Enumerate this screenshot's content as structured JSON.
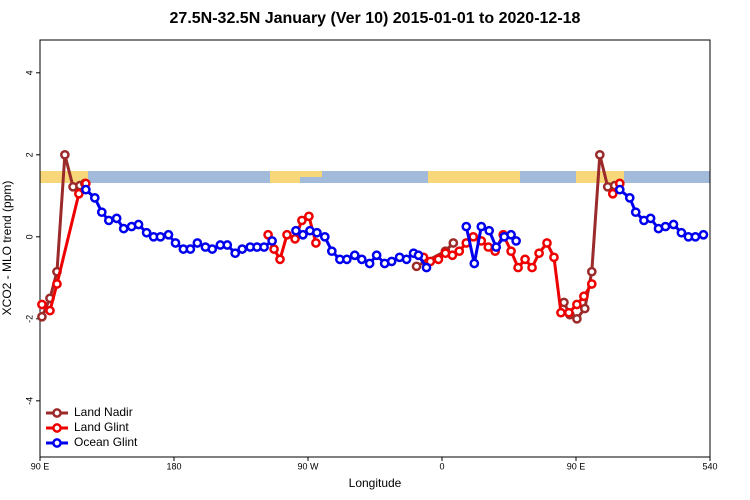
{
  "chart_data": {
    "type": "line",
    "title": "27.5N-32.5N January (Ver 10)   2015-01-01 to 2020-12-18",
    "x_label": "Longitude",
    "y_label": "XCO2 - MLO trend (ppm)",
    "xlim": [
      90,
      540
    ],
    "ylim": [
      -5.37,
      4.8
    ],
    "xticks": [
      {
        "value": 90,
        "label": "90 E"
      },
      180,
      {
        "value": 270,
        "label": "90 W"
      },
      {
        "value": 360,
        "label": "0"
      },
      {
        "value": 450,
        "label": "90 E"
      },
      540
    ],
    "yticks": [
      -4,
      -2,
      0,
      2,
      4
    ],
    "legend": "bottom-left",
    "series": [
      {
        "name": "Land Nadir",
        "color": "#9b2a2a",
        "x": [
          91.3,
          96.7,
          101.4,
          106.7,
          112.2,
          116.8,
          120.1,
          null,
          342.9,
          362.3,
          367.6,
          null,
          441.9,
          445.9,
          450.6,
          455.9,
          460.6,
          466.0,
          471.3,
          476.0,
          479.4
        ],
        "values": [
          -1.95,
          -1.5,
          -0.85,
          2.0,
          1.22,
          1.25,
          1.3,
          null,
          -0.72,
          -0.35,
          -0.15,
          null,
          -1.6,
          -1.9,
          -2.0,
          -1.75,
          -0.85,
          2.0,
          1.22,
          1.25,
          1.3
        ]
      },
      {
        "name": "Land Glint",
        "color": "#ee0000",
        "x": [
          91.3,
          96.7,
          101.4,
          116.1,
          120.8,
          null,
          243.2,
          247.2,
          251.2,
          255.9,
          261.3,
          265.9,
          270.6,
          275.3,
          null,
          347.6,
          352.2,
          357.6,
          362.3,
          367.0,
          371.6,
          376.3,
          381.0,
          386.4,
          391.1,
          395.7,
          401.1,
          406.4,
          411.1,
          415.8,
          420.5,
          425.2,
          430.5,
          435.2,
          439.9,
          445.2,
          450.6,
          455.3,
          460.6,
          null,
          474.7,
          479.4
        ],
        "values": [
          -1.65,
          -1.8,
          -1.15,
          1.05,
          1.3,
          null,
          0.05,
          -0.3,
          -0.55,
          0.05,
          -0.05,
          0.4,
          0.5,
          -0.15,
          null,
          -0.5,
          -0.6,
          -0.55,
          -0.4,
          -0.45,
          -0.35,
          -0.15,
          0.0,
          -0.1,
          -0.25,
          -0.35,
          0.05,
          -0.35,
          -0.75,
          -0.55,
          -0.75,
          -0.4,
          -0.15,
          -0.5,
          -1.85,
          -1.85,
          -1.65,
          -1.45,
          -1.15,
          null,
          1.05,
          1.3
        ]
      },
      {
        "name": "Ocean Glint",
        "color": "#0000ee",
        "x": [
          120.8,
          126.8,
          131.5,
          136.2,
          141.5,
          146.2,
          151.5,
          156.2,
          161.6,
          166.3,
          170.9,
          176.3,
          181.0,
          186.3,
          191.0,
          195.7,
          201.1,
          205.7,
          211.1,
          215.8,
          221.1,
          225.8,
          231.2,
          235.8,
          240.5,
          245.9,
          null,
          261.9,
          266.6,
          271.3,
          276.0,
          281.3,
          286.0,
          291.4,
          296.1,
          301.4,
          306.1,
          311.4,
          316.1,
          321.5,
          326.2,
          331.5,
          336.2,
          340.9,
          344.2,
          349.6,
          null,
          376.3,
          381.7,
          386.4,
          391.7,
          396.4,
          401.8,
          406.4,
          409.8,
          null,
          479.4,
          486.1,
          490.1,
          495.6,
          500.1,
          505.4,
          510.1,
          515.5,
          520.8,
          525.5,
          530.2,
          535.6
        ],
        "values": [
          1.15,
          0.95,
          0.6,
          0.4,
          0.45,
          0.2,
          0.25,
          0.3,
          0.1,
          0.0,
          0.0,
          0.05,
          -0.15,
          -0.3,
          -0.3,
          -0.15,
          -0.25,
          -0.3,
          -0.2,
          -0.2,
          -0.4,
          -0.3,
          -0.25,
          -0.25,
          -0.25,
          -0.1,
          null,
          0.15,
          0.05,
          0.15,
          0.1,
          0.0,
          -0.35,
          -0.55,
          -0.55,
          -0.45,
          -0.55,
          -0.65,
          -0.45,
          -0.65,
          -0.6,
          -0.5,
          -0.55,
          -0.4,
          -0.45,
          -0.75,
          null,
          0.25,
          -0.65,
          0.25,
          0.15,
          -0.25,
          0.0,
          0.05,
          -0.1,
          null,
          1.15,
          0.95,
          0.6,
          0.4,
          0.45,
          0.2,
          0.25,
          0.3,
          0.1,
          0.0,
          0.0,
          0.05
        ]
      }
    ]
  }
}
